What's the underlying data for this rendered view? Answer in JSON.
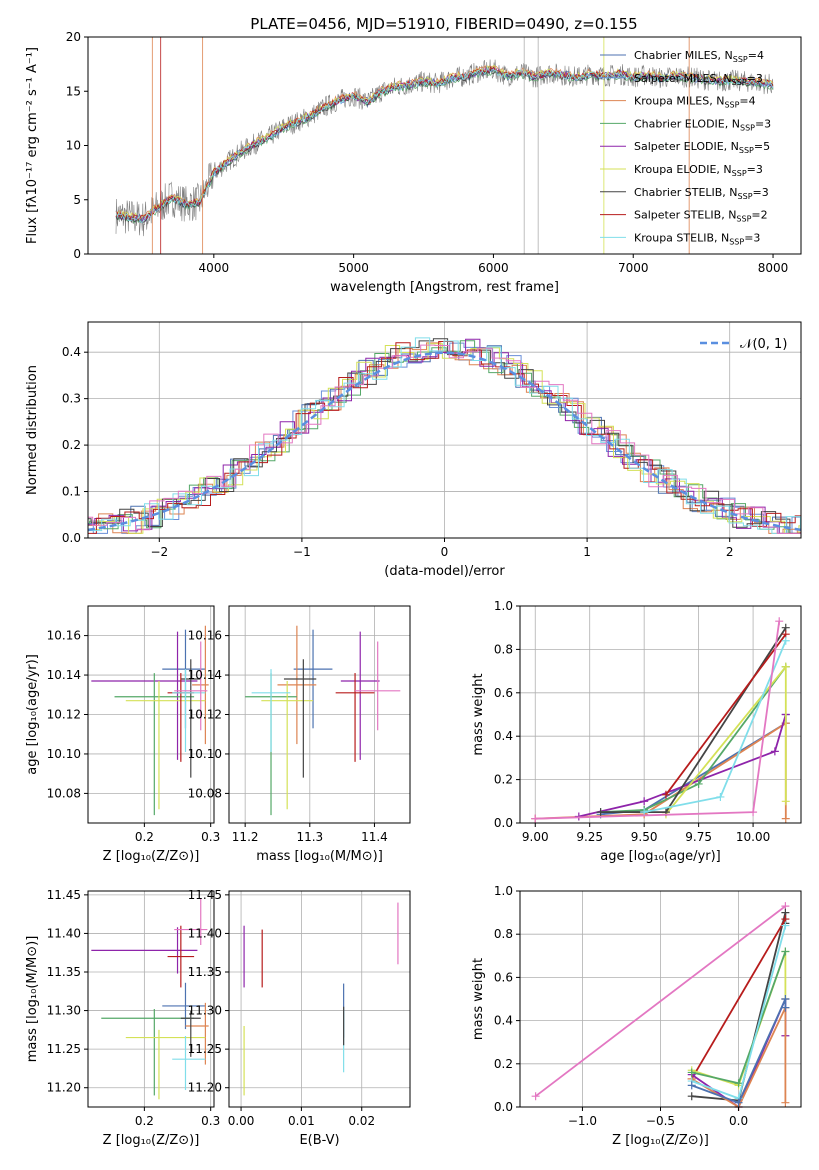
{
  "figure": {
    "title": "PLATE=0456, MJD=51910, FIBERID=0490, z=0.155"
  },
  "chart_data": [
    {
      "id": "spectrum",
      "type": "line",
      "xlabel": "wavelength [Angstrom, rest frame]",
      "ylabel": "Flux [fλ10⁻¹⁷ erg cm⁻² s⁻¹ A⁻¹]",
      "xlim": [
        3100,
        8200
      ],
      "ylim": [
        0,
        20
      ],
      "xticks": [
        4000,
        5000,
        6000,
        7000,
        8000
      ],
      "yticks": [
        0,
        5,
        10,
        15,
        20
      ],
      "grid": false,
      "legend": "upper right",
      "observed": {
        "x": [
          3300,
          3400,
          3500,
          3600,
          3700,
          3800,
          3900,
          4000,
          4100,
          4200,
          4300,
          4400,
          4500,
          4600,
          4700,
          4800,
          4900,
          5000,
          5100,
          5200,
          5300,
          5400,
          5500,
          5600,
          5700,
          5800,
          5900,
          6000,
          6100,
          6200,
          6300,
          6400,
          6500,
          6600,
          6700,
          6800,
          6900,
          7000,
          7100,
          7200,
          7300,
          7400,
          7500,
          7600,
          7700,
          7800,
          7900,
          8000
        ],
        "y": [
          3.6,
          3.4,
          3.2,
          4.3,
          5.2,
          4.6,
          4.8,
          7.5,
          8.5,
          9.5,
          10.2,
          10.8,
          11.7,
          12.2,
          12.8,
          13.6,
          14.2,
          14.6,
          14.0,
          15.0,
          15.4,
          15.6,
          15.9,
          15.7,
          16.2,
          16.4,
          16.8,
          17.0,
          16.4,
          16.7,
          16.3,
          16.7,
          16.5,
          16.3,
          16.6,
          16.4,
          16.6,
          16.3,
          16.5,
          16.2,
          16.4,
          16.3,
          16.1,
          15.9,
          16.0,
          15.9,
          15.8,
          15.6
        ]
      },
      "series": [
        {
          "name": "Chabrier MILES, N_SSP=4",
          "color": "#4c72b0",
          "offset": 0.1
        },
        {
          "name": "Salpeter MILES, N_SSP=3",
          "color": "#6a8fd8",
          "offset": -0.1
        },
        {
          "name": "Kroupa MILES, N_SSP=4",
          "color": "#dd8452",
          "offset": 0.2
        },
        {
          "name": "Chabrier ELODIE, N_SSP=3",
          "color": "#55a868",
          "offset": -0.2
        },
        {
          "name": "Salpeter ELODIE, N_SSP=5",
          "color": "#8e24aa",
          "offset": 0.0
        },
        {
          "name": "Kroupa ELODIE, N_SSP=3",
          "color": "#d4e157",
          "offset": 0.15
        },
        {
          "name": "Chabrier STELIB, N_SSP=3",
          "color": "#444444",
          "offset": -0.15
        },
        {
          "name": "Salpeter STELIB, N_SSP=2",
          "color": "#b71c1c",
          "offset": 0.05
        },
        {
          "name": "Kroupa STELIB, N_SSP=3",
          "color": "#80deea",
          "offset": -0.05
        }
      ]
    },
    {
      "id": "residuals",
      "type": "step",
      "xlabel": "(data-model)/error",
      "ylabel": "Normed distribution",
      "xlim": [
        -2.5,
        2.5
      ],
      "ylim": [
        0,
        0.465
      ],
      "xticks": [
        -2,
        -1,
        0,
        1,
        2
      ],
      "yticks": [
        0.0,
        0.1,
        0.2,
        0.3,
        0.4
      ],
      "grid": true,
      "legend": "upper right",
      "normal_label": "𝒩(0, 1)",
      "normal_color": "#5a8fe0"
    },
    {
      "id": "age-vs-Z",
      "type": "errorbar",
      "xlabel": "Z [log₁₀(Z/Z⊙)]",
      "ylabel": "age  [log₁₀(age/yr)]",
      "xlim": [
        0.115,
        0.305
      ],
      "ylim": [
        10.065,
        10.175
      ],
      "xticks": [
        0.2,
        0.3
      ],
      "yticks": [
        10.08,
        10.1,
        10.12,
        10.14,
        10.16
      ],
      "points": [
        {
          "x": 0.262,
          "y": 10.143,
          "xerr": [
            0.035,
            0.03
          ],
          "yerr": [
            0.03,
            0.02
          ],
          "color": "#4c72b0"
        },
        {
          "x": 0.25,
          "y": 10.137,
          "xerr": [
            0.13,
            0.03
          ],
          "yerr": [
            0.04,
            0.025
          ],
          "color": "#8e24aa"
        },
        {
          "x": 0.292,
          "y": 10.135,
          "xerr": [
            0.02,
            0.005
          ],
          "yerr": [
            0.03,
            0.03
          ],
          "color": "#dd8452"
        },
        {
          "x": 0.215,
          "y": 10.129,
          "xerr": [
            0.06,
            0.06
          ],
          "yerr": [
            0.06,
            0.012
          ],
          "color": "#55a868"
        },
        {
          "x": 0.222,
          "y": 10.127,
          "xerr": [
            0.05,
            0.07
          ],
          "yerr": [
            0.055,
            0.01
          ],
          "color": "#d4e157"
        },
        {
          "x": 0.27,
          "y": 10.138,
          "xerr": [
            0.015,
            0.015
          ],
          "yerr": [
            0.05,
            0.01
          ],
          "color": "#444444"
        },
        {
          "x": 0.255,
          "y": 10.131,
          "xerr": [
            0.02,
            0.02
          ],
          "yerr": [
            0.035,
            0.01
          ],
          "color": "#b71c1c"
        },
        {
          "x": 0.262,
          "y": 10.131,
          "xerr": [
            0.02,
            0.03
          ],
          "yerr": [
            0.03,
            0.012
          ],
          "color": "#80deea"
        },
        {
          "x": 0.285,
          "y": 10.132,
          "xerr": [
            0.04,
            0.01
          ],
          "yerr": [
            0.02,
            0.025
          ],
          "color": "#e377c2"
        }
      ]
    },
    {
      "id": "age-vs-mass",
      "type": "errorbar",
      "xlabel": "mass [log₁₀(M/M⊙)]",
      "ylabel": "",
      "xlim": [
        11.175,
        11.455
      ],
      "ylim": [
        10.065,
        10.175
      ],
      "xticks": [
        11.2,
        11.3,
        11.4
      ],
      "yticks": [
        10.08,
        10.1,
        10.12,
        10.14,
        10.16
      ],
      "points": [
        {
          "x": 11.305,
          "y": 10.143,
          "xerr": [
            0.03,
            0.03
          ],
          "yerr": [
            0.03,
            0.02
          ],
          "color": "#4c72b0"
        },
        {
          "x": 11.378,
          "y": 10.137,
          "xerr": [
            0.03,
            0.03
          ],
          "yerr": [
            0.04,
            0.025
          ],
          "color": "#8e24aa"
        },
        {
          "x": 11.28,
          "y": 10.135,
          "xerr": [
            0.03,
            0.03
          ],
          "yerr": [
            0.03,
            0.03
          ],
          "color": "#dd8452"
        },
        {
          "x": 11.24,
          "y": 10.129,
          "xerr": [
            0.04,
            0.04
          ],
          "yerr": [
            0.06,
            0.012
          ],
          "color": "#55a868"
        },
        {
          "x": 11.265,
          "y": 10.127,
          "xerr": [
            0.04,
            0.04
          ],
          "yerr": [
            0.055,
            0.01
          ],
          "color": "#d4e157"
        },
        {
          "x": 11.29,
          "y": 10.138,
          "xerr": [
            0.03,
            0.02
          ],
          "yerr": [
            0.05,
            0.01
          ],
          "color": "#444444"
        },
        {
          "x": 11.37,
          "y": 10.131,
          "xerr": [
            0.03,
            0.03
          ],
          "yerr": [
            0.035,
            0.01
          ],
          "color": "#b71c1c"
        },
        {
          "x": 11.24,
          "y": 10.131,
          "xerr": [
            0.03,
            0.03
          ],
          "yerr": [
            0.03,
            0.012
          ],
          "color": "#80deea"
        },
        {
          "x": 11.405,
          "y": 10.132,
          "xerr": [
            0.035,
            0.035
          ],
          "yerr": [
            0.02,
            0.025
          ],
          "color": "#e377c2"
        }
      ]
    },
    {
      "id": "weight-vs-age",
      "type": "line",
      "xlabel": "age  [log₁₀(age/yr)]",
      "ylabel": "mass weight",
      "xlim": [
        8.93,
        10.22
      ],
      "ylim": [
        0,
        1.0
      ],
      "xticks": [
        9.0,
        9.25,
        9.5,
        9.75,
        10.0
      ],
      "xtick_labels": [
        "9.00",
        "9.25",
        "9.50",
        "9.75",
        "10.00"
      ],
      "yticks": [
        0.0,
        0.2,
        0.4,
        0.6,
        0.8,
        1.0
      ],
      "grid": true,
      "series": [
        {
          "color": "#4c72b0",
          "x": [
            9.3,
            9.5,
            10.15,
            10.15
          ],
          "y": [
            0.04,
            0.06,
            0.46,
            0.5
          ]
        },
        {
          "color": "#dd8452",
          "x": [
            9.0,
            9.5,
            10.15,
            10.15
          ],
          "y": [
            0.02,
            0.04,
            0.46,
            0.02
          ]
        },
        {
          "color": "#8e24aa",
          "x": [
            9.2,
            9.5,
            10.1,
            10.15
          ],
          "y": [
            0.03,
            0.1,
            0.33,
            0.5
          ]
        },
        {
          "color": "#55a868",
          "x": [
            9.3,
            9.5,
            9.75,
            10.15
          ],
          "y": [
            0.05,
            0.06,
            0.18,
            0.72
          ]
        },
        {
          "color": "#d4e157",
          "x": [
            9.6,
            10.15,
            10.15
          ],
          "y": [
            0.04,
            0.72,
            0.1
          ]
        },
        {
          "color": "#444444",
          "x": [
            9.3,
            9.6,
            10.15
          ],
          "y": [
            0.05,
            0.05,
            0.9
          ]
        },
        {
          "color": "#b71c1c",
          "x": [
            9.6,
            10.15
          ],
          "y": [
            0.13,
            0.87
          ]
        },
        {
          "color": "#80deea",
          "x": [
            9.5,
            9.85,
            10.15
          ],
          "y": [
            0.05,
            0.12,
            0.84
          ]
        },
        {
          "color": "#e377c2",
          "x": [
            9.0,
            10.0,
            10.12
          ],
          "y": [
            0.02,
            0.05,
            0.93
          ]
        }
      ]
    },
    {
      "id": "mass-vs-Z",
      "type": "errorbar",
      "xlabel": "Z [log₁₀(Z/Z⊙)]",
      "ylabel": "mass [log₁₀(M/M⊙)]",
      "xlim": [
        0.115,
        0.305
      ],
      "ylim": [
        11.175,
        11.455
      ],
      "xticks": [
        0.2,
        0.3
      ],
      "yticks": [
        11.2,
        11.25,
        11.3,
        11.35,
        11.4,
        11.45
      ],
      "points": [
        {
          "x": 0.262,
          "y": 11.306,
          "xerr": [
            0.035,
            0.03
          ],
          "yerr": [
            0.03,
            0.03
          ],
          "color": "#4c72b0"
        },
        {
          "x": 0.25,
          "y": 11.378,
          "xerr": [
            0.13,
            0.03
          ],
          "yerr": [
            0.03,
            0.03
          ],
          "color": "#8e24aa"
        },
        {
          "x": 0.292,
          "y": 11.28,
          "xerr": [
            0.03,
            0.005
          ],
          "yerr": [
            0.05,
            0.03
          ],
          "color": "#dd8452"
        },
        {
          "x": 0.215,
          "y": 11.29,
          "xerr": [
            0.08,
            0.06
          ],
          "yerr": [
            0.1,
            0.012
          ],
          "color": "#55a868"
        },
        {
          "x": 0.222,
          "y": 11.265,
          "xerr": [
            0.05,
            0.07
          ],
          "yerr": [
            0.08,
            0.01
          ],
          "color": "#d4e157"
        },
        {
          "x": 0.27,
          "y": 11.29,
          "xerr": [
            0.015,
            0.015
          ],
          "yerr": [
            0.05,
            0.01
          ],
          "color": "#444444"
        },
        {
          "x": 0.255,
          "y": 11.37,
          "xerr": [
            0.02,
            0.02
          ],
          "yerr": [
            0.04,
            0.04
          ],
          "color": "#b71c1c"
        },
        {
          "x": 0.262,
          "y": 11.237,
          "xerr": [
            0.02,
            0.03
          ],
          "yerr": [
            0.04,
            0.03
          ],
          "color": "#80deea"
        },
        {
          "x": 0.285,
          "y": 11.405,
          "xerr": [
            0.04,
            0.01
          ],
          "yerr": [
            0.02,
            0.04
          ],
          "color": "#e377c2"
        }
      ]
    },
    {
      "id": "mass-vs-EBV",
      "type": "errorbar",
      "xlabel": "E(B-V)",
      "ylabel": "",
      "xlim": [
        -0.002,
        0.028
      ],
      "ylim": [
        11.175,
        11.455
      ],
      "xticks": [
        0.0,
        0.01,
        0.02
      ],
      "xtick_labels": [
        "0.00",
        "0.01",
        "0.02"
      ],
      "yticks": [
        11.2,
        11.25,
        11.3,
        11.35,
        11.4,
        11.45
      ],
      "points": [
        {
          "x": 0.0005,
          "y": 11.37,
          "xerr": [
            0,
            0
          ],
          "yerr": [
            0.04,
            0.04
          ],
          "color": "#8e24aa"
        },
        {
          "x": 0.0035,
          "y": 11.37,
          "xerr": [
            0,
            0
          ],
          "yerr": [
            0.04,
            0.035
          ],
          "color": "#b71c1c"
        },
        {
          "x": 0.0005,
          "y": 11.24,
          "xerr": [
            0,
            0
          ],
          "yerr": [
            0.05,
            0.04
          ],
          "color": "#d4e157"
        },
        {
          "x": 0.017,
          "y": 11.295,
          "xerr": [
            0,
            0
          ],
          "yerr": [
            0.03,
            0.04
          ],
          "color": "#4c72b0"
        },
        {
          "x": 0.017,
          "y": 11.27,
          "xerr": [
            0,
            0
          ],
          "yerr": [
            0.05,
            0.03
          ],
          "color": "#80deea"
        },
        {
          "x": 0.017,
          "y": 11.285,
          "xerr": [
            0,
            0
          ],
          "yerr": [
            0.03,
            0.02
          ],
          "color": "#444444"
        },
        {
          "x": 0.026,
          "y": 11.4,
          "xerr": [
            0,
            0
          ],
          "yerr": [
            0.04,
            0.04
          ],
          "color": "#e377c2"
        }
      ]
    },
    {
      "id": "weight-vs-Z",
      "type": "line",
      "xlabel": "Z [log₁₀(Z/Z⊙)]",
      "ylabel": "mass weight",
      "xlim": [
        -1.4,
        0.4
      ],
      "ylim": [
        0,
        1.0
      ],
      "xticks": [
        -1.0,
        -0.5,
        0.0
      ],
      "xtick_labels": [
        "−1.0",
        "−0.5",
        "0.0"
      ],
      "yticks": [
        0.0,
        0.2,
        0.4,
        0.6,
        0.8,
        1.0
      ],
      "grid": true,
      "series": [
        {
          "color": "#e377c2",
          "x": [
            -1.3,
            0.3
          ],
          "y": [
            0.05,
            0.93
          ]
        },
        {
          "color": "#444444",
          "x": [
            -0.3,
            0.0,
            0.3,
            0.3
          ],
          "y": [
            0.05,
            0.03,
            0.9,
            0.85
          ]
        },
        {
          "color": "#b71c1c",
          "x": [
            -0.3,
            0.3
          ],
          "y": [
            0.13,
            0.87
          ]
        },
        {
          "color": "#8e24aa",
          "x": [
            -0.3,
            0.0,
            0.3,
            0.3
          ],
          "y": [
            0.15,
            0.0,
            0.5,
            0.33
          ]
        },
        {
          "color": "#dd8452",
          "x": [
            -0.3,
            0.0,
            0.3,
            0.3
          ],
          "y": [
            0.13,
            0.0,
            0.46,
            0.02
          ]
        },
        {
          "color": "#d4e157",
          "x": [
            -0.3,
            0.0,
            0.3,
            0.3
          ],
          "y": [
            0.17,
            0.1,
            0.72,
            0.5
          ]
        },
        {
          "color": "#55a868",
          "x": [
            -0.3,
            0.0,
            0.3
          ],
          "y": [
            0.16,
            0.11,
            0.72
          ]
        },
        {
          "color": "#80deea",
          "x": [
            -0.3,
            0.0,
            0.3
          ],
          "y": [
            0.12,
            0.04,
            0.84
          ]
        },
        {
          "color": "#4c72b0",
          "x": [
            -0.3,
            0.0,
            0.3,
            0.3
          ],
          "y": [
            0.1,
            0.02,
            0.5,
            0.46
          ]
        }
      ]
    }
  ]
}
